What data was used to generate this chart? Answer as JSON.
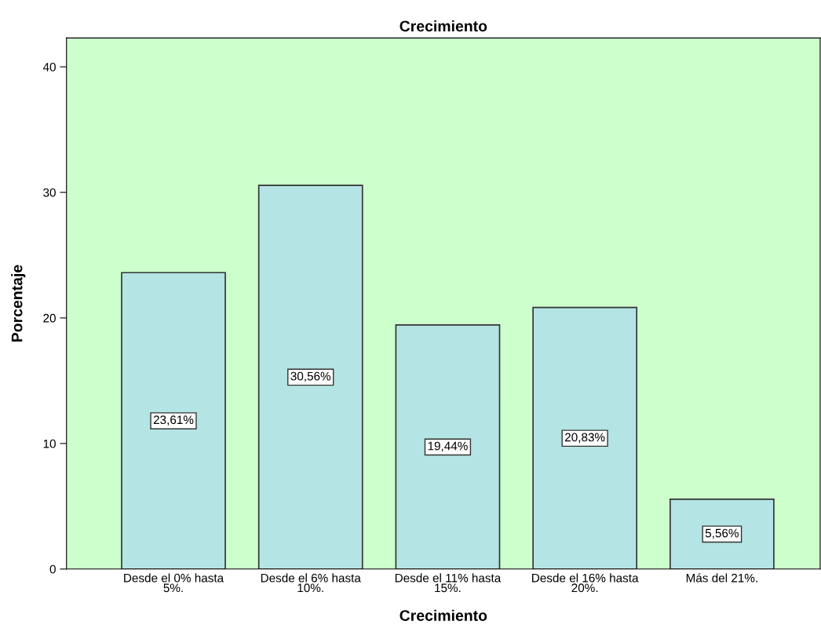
{
  "chart_data": {
    "type": "bar",
    "title": "Crecimiento",
    "xlabel": "Crecimiento",
    "ylabel": "Porcentaje",
    "categories": [
      "Desde el 0% hasta\n5%.",
      "Desde el 6% hasta\n10%.",
      "Desde el 11% hasta\n15%.",
      "Desde el 16% hasta\n20%.",
      "Más del 21%."
    ],
    "values": [
      23.61,
      30.56,
      19.44,
      20.83,
      5.56
    ],
    "value_labels": [
      "23,61%",
      "30,56%",
      "19,44%",
      "20,83%",
      "5,56%"
    ],
    "color": "#b4e4e4",
    "ylim": [
      0,
      42.3
    ],
    "yticks": [
      0,
      10,
      20,
      30,
      40
    ],
    "grid": false,
    "legend": false
  }
}
